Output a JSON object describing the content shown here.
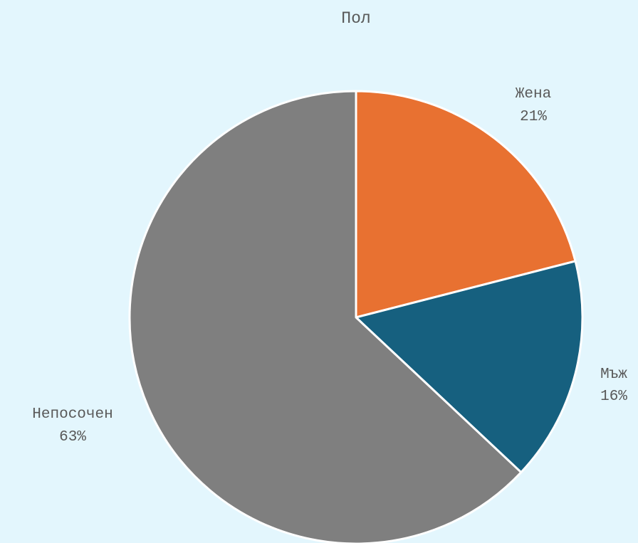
{
  "chart_data": {
    "type": "pie",
    "title": "Пол",
    "slices": [
      {
        "label": "Жена",
        "value": 21,
        "value_label": "21%",
        "color": "#e87131"
      },
      {
        "label": "Мъж",
        "value": 16,
        "value_label": "16%",
        "color": "#16607f"
      },
      {
        "label": "Непосочен",
        "value": 63,
        "value_label": "63%",
        "color": "#7f7f7f"
      }
    ],
    "start_angle": "12 o'clock",
    "direction": "clockwise",
    "slice_border_color": "#ffffff",
    "background_color": "#e3f6fd",
    "legend": "none"
  }
}
